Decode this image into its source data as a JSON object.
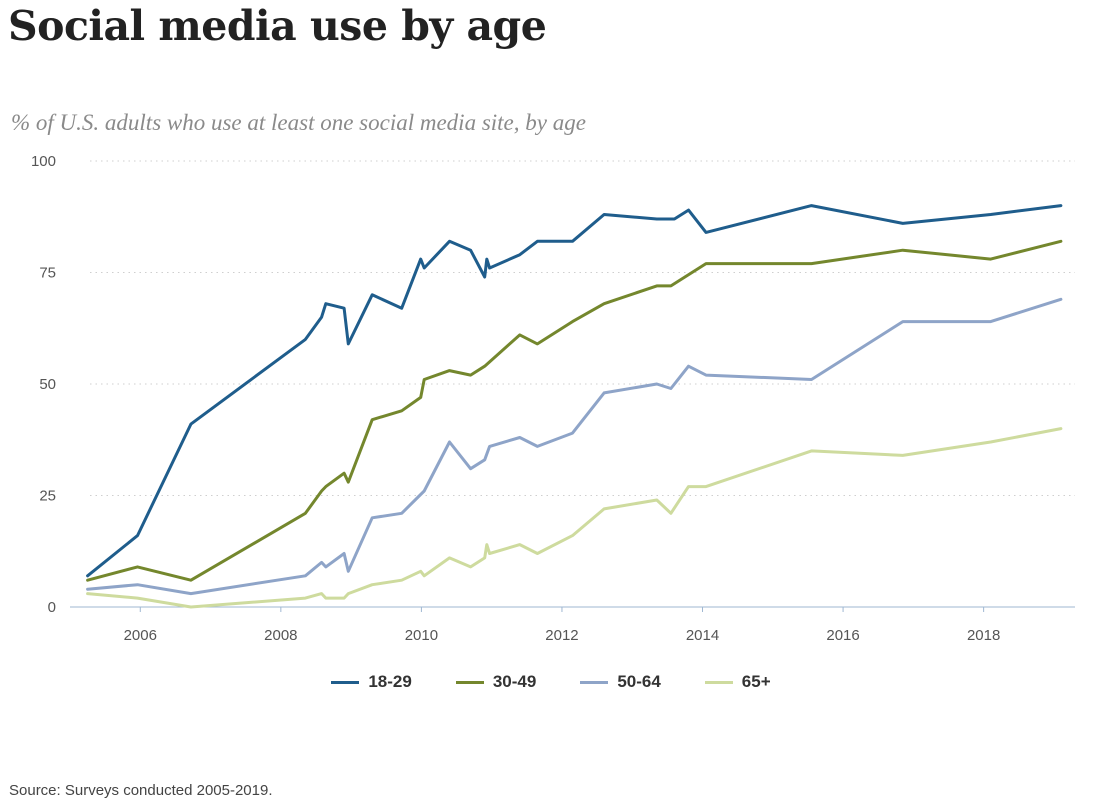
{
  "chart_data": {
    "type": "line",
    "title": "Social media use by age",
    "subtitle": "% of U.S. adults who use at least one social media site, by age",
    "xlabel": "",
    "ylabel": "",
    "xlim": [
      2005.0,
      2019.3
    ],
    "ylim": [
      0,
      100
    ],
    "y_ticks": [
      "0",
      "25",
      "50",
      "75",
      "100"
    ],
    "x_ticks": [
      "2006",
      "2008",
      "2010",
      "2012",
      "2014",
      "2016",
      "2018"
    ],
    "grid": "horizontal dotted",
    "legend": "bottom-center",
    "series": [
      {
        "name": "18-29",
        "color": "#1f5d8c",
        "x": [
          2005.25,
          2005.96,
          2006.72,
          2008.35,
          2008.58,
          2008.64,
          2008.9,
          2008.96,
          2009.3,
          2009.72,
          2009.99,
          2010.04,
          2010.4,
          2010.7,
          2010.9,
          2010.93,
          2010.97,
          2011.4,
          2011.65,
          2012.15,
          2012.6,
          2013.35,
          2013.6,
          2013.8,
          2014.05,
          2015.55,
          2016.85,
          2018.1,
          2019.1
        ],
        "y": [
          7,
          16,
          41,
          60,
          65,
          68,
          67,
          59,
          70,
          67,
          78,
          76,
          82,
          80,
          74,
          78,
          76,
          79,
          82,
          82,
          88,
          87,
          87,
          89,
          84,
          90,
          86,
          88,
          90
        ]
      },
      {
        "name": "30-49",
        "color": "#74872d",
        "x": [
          2005.25,
          2005.96,
          2006.72,
          2008.35,
          2008.58,
          2008.64,
          2008.9,
          2008.96,
          2009.3,
          2009.72,
          2009.99,
          2010.04,
          2010.4,
          2010.7,
          2010.9,
          2011.4,
          2011.65,
          2012.15,
          2012.6,
          2013.35,
          2013.55,
          2014.05,
          2015.55,
          2016.85,
          2018.1,
          2019.1
        ],
        "y": [
          6,
          9,
          6,
          21,
          26,
          27,
          30,
          28,
          42,
          44,
          47,
          51,
          53,
          52,
          54,
          61,
          59,
          64,
          68,
          72,
          72,
          77,
          77,
          80,
          78,
          82
        ]
      },
      {
        "name": "50-64",
        "color": "#8ea4c8",
        "x": [
          2005.25,
          2005.96,
          2006.72,
          2008.35,
          2008.58,
          2008.64,
          2008.9,
          2008.96,
          2009.3,
          2009.72,
          2010.04,
          2010.4,
          2010.7,
          2010.9,
          2010.97,
          2011.4,
          2011.65,
          2012.15,
          2012.6,
          2013.35,
          2013.55,
          2013.8,
          2014.05,
          2015.55,
          2016.85,
          2018.1,
          2019.1
        ],
        "y": [
          4,
          5,
          3,
          7,
          10,
          9,
          12,
          8,
          20,
          21,
          26,
          37,
          31,
          33,
          36,
          38,
          36,
          39,
          48,
          50,
          49,
          54,
          52,
          51,
          64,
          64,
          69
        ]
      },
      {
        "name": "65+",
        "color": "#cedb9e",
        "x": [
          2005.25,
          2005.96,
          2006.72,
          2008.35,
          2008.58,
          2008.64,
          2008.9,
          2008.96,
          2009.3,
          2009.72,
          2009.99,
          2010.04,
          2010.4,
          2010.7,
          2010.9,
          2010.93,
          2010.97,
          2011.4,
          2011.65,
          2012.15,
          2012.6,
          2013.35,
          2013.55,
          2013.8,
          2014.05,
          2015.55,
          2016.85,
          2018.1,
          2019.1
        ],
        "y": [
          3,
          2,
          0,
          2,
          3,
          2,
          2,
          3,
          5,
          6,
          8,
          7,
          11,
          9,
          11,
          14,
          12,
          14,
          12,
          16,
          22,
          24,
          21,
          27,
          27,
          35,
          34,
          37,
          40
        ]
      }
    ]
  },
  "footer": {
    "source": "Source: Surveys conducted 2005-2019."
  }
}
